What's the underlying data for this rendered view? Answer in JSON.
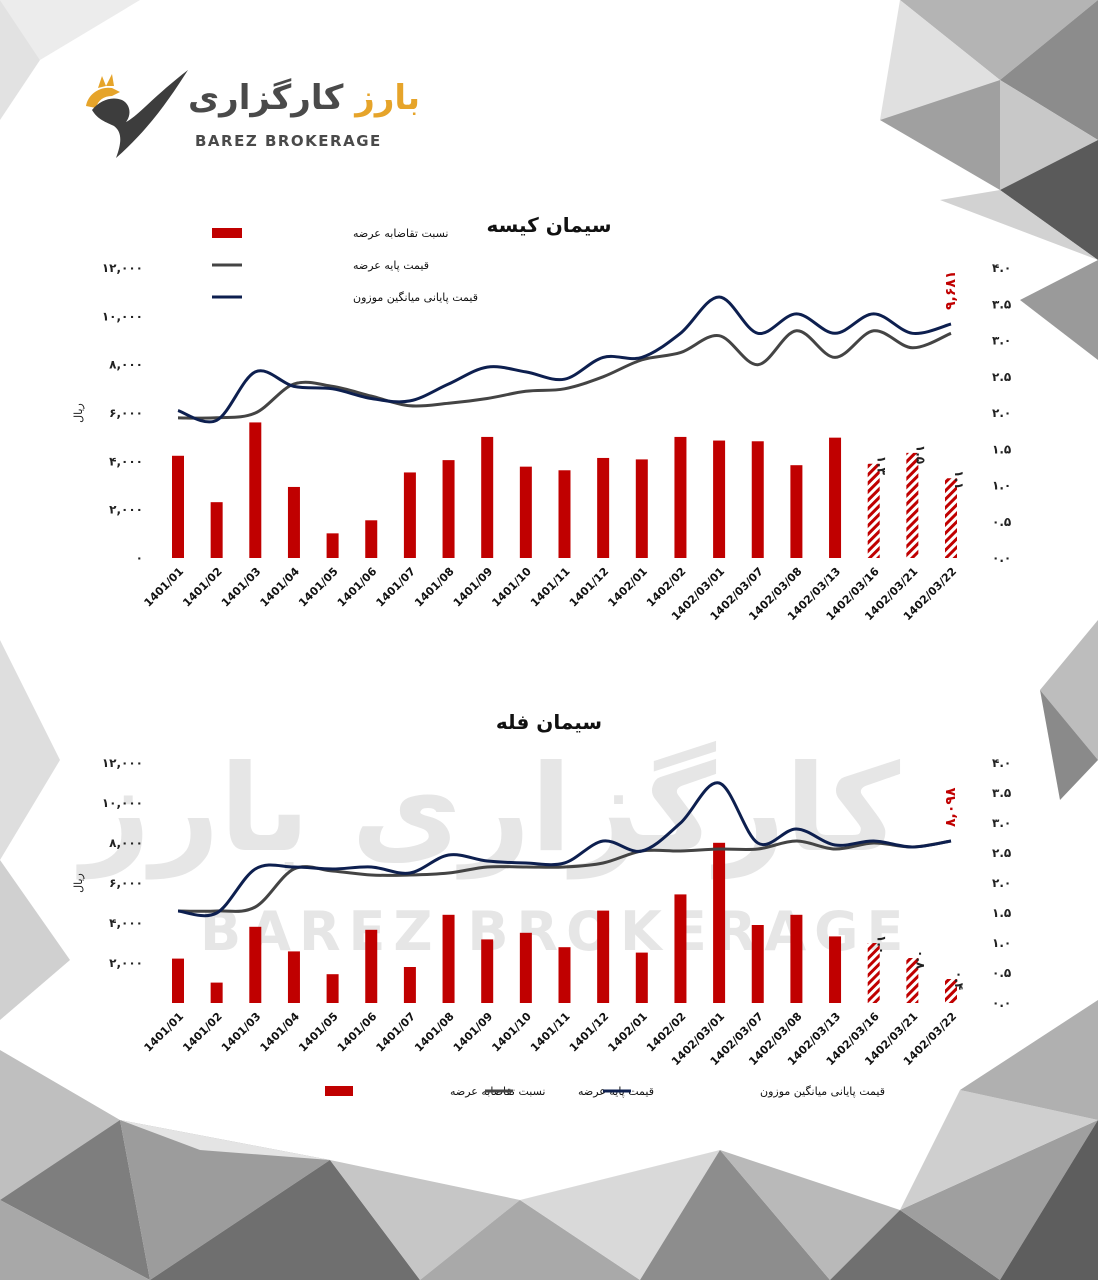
{
  "brand": {
    "name_fa_main": "کارگزاری",
    "name_fa_accent": "بارز",
    "name_en": "BAREZ BROKERAGE",
    "watermark_fa": "کارگزاری بارز",
    "watermark_en": "BAREZ BROKERAGE"
  },
  "colors": {
    "bar": "#c00000",
    "base_price_line": "#444444",
    "avg_price_line": "#0d1f4f",
    "annotation": "#c00000"
  },
  "left_axis_unit": "ریال",
  "chart_data": [
    {
      "type": "bar",
      "title": "سیمان کیسه",
      "categories": [
        "1401/01",
        "1401/02",
        "1401/03",
        "1401/04",
        "1401/05",
        "1401/06",
        "1401/07",
        "1401/08",
        "1401/09",
        "1401/10",
        "1401/11",
        "1401/12",
        "1402/01",
        "1402/02",
        "1402/03/01",
        "1402/03/07",
        "1402/03/08",
        "1402/03/13",
        "1402/03/16",
        "1402/03/21",
        "1402/03/22"
      ],
      "y_ticks": [
        "۱۲,۰۰۰",
        "۱۰,۰۰۰",
        "۸,۰۰۰",
        "۶,۰۰۰",
        "۴,۰۰۰",
        "۲,۰۰۰",
        "۰"
      ],
      "y2_ticks": [
        "۴.۰",
        "۳.۵",
        "۳.۰",
        "۲.۵",
        "۲.۰",
        "۱.۵",
        "۱.۰",
        "۰.۵",
        "۰.۰"
      ],
      "ylim": [
        0,
        12000
      ],
      "y2lim": [
        0,
        4.0
      ],
      "legend": [
        "نسبت تقاضابه عرضه",
        "قیمت پایه عرضه",
        "قیمت پایانی میانگین موزون"
      ],
      "legend_position": "top-left",
      "series": [
        {
          "name": "نسبت تقاضابه عرضه",
          "axis": "right",
          "type": "bar",
          "values": [
            1.41,
            0.77,
            1.87,
            0.98,
            0.34,
            0.52,
            1.18,
            1.35,
            1.67,
            1.26,
            1.21,
            1.38,
            1.36,
            1.67,
            1.62,
            1.61,
            1.28,
            1.66,
            1.3,
            1.45,
            1.1
          ]
        },
        {
          "name": "قیمت پایه عرضه",
          "axis": "left",
          "type": "line",
          "values": [
            5800,
            5800,
            6000,
            7200,
            7100,
            6700,
            6300,
            6400,
            6600,
            6900,
            7000,
            7500,
            8200,
            8500,
            9200,
            8000,
            9400,
            8300,
            9400,
            8700,
            9300
          ]
        },
        {
          "name": "قیمت پایانی میانگین موزون",
          "axis": "left",
          "type": "line",
          "values": [
            6100,
            5700,
            7700,
            7100,
            7000,
            6600,
            6500,
            7200,
            7900,
            7700,
            7400,
            8300,
            8300,
            9300,
            10800,
            9300,
            10100,
            9300,
            10100,
            9300,
            9681
          ]
        }
      ],
      "hatched_categories": [
        "1402/03/16",
        "1402/03/21",
        "1402/03/22"
      ],
      "annotations": [
        {
          "category": "1402/03/16",
          "text": "۱.۳"
        },
        {
          "category": "1402/03/21",
          "text": "۱.۵"
        },
        {
          "category": "1402/03/22",
          "text": "۱.۱"
        },
        {
          "category": "1402/03/22",
          "text": "۹,۶۸۱"
        }
      ]
    },
    {
      "type": "bar",
      "title": "سیمان فله",
      "categories": [
        "1401/01",
        "1401/02",
        "1401/03",
        "1401/04",
        "1401/05",
        "1401/06",
        "1401/07",
        "1401/08",
        "1401/09",
        "1401/10",
        "1401/11",
        "1401/12",
        "1402/01",
        "1402/02",
        "1402/03/01",
        "1402/03/07",
        "1402/03/08",
        "1402/03/13",
        "1402/03/16",
        "1402/03/21",
        "1402/03/22"
      ],
      "y_ticks": [
        "۱۲,۰۰۰",
        "۱۰,۰۰۰",
        "۸,۰۰۰",
        "۶,۰۰۰",
        "۴,۰۰۰",
        "۲,۰۰۰"
      ],
      "y2_ticks": [
        "۴.۰",
        "۳.۵",
        "۳.۰",
        "۲.۵",
        "۲.۰",
        "۱.۵",
        "۱.۰",
        "۰.۵",
        "۰.۰"
      ],
      "ylim": [
        0,
        12000
      ],
      "y2lim": [
        0,
        4.0
      ],
      "legend": [
        "نسبت تقاضابه عرضه",
        "قیمت پایه عرضه",
        "قیمت پایانی میانگین موزون"
      ],
      "legend_position": "bottom",
      "series": [
        {
          "name": "نسبت تقاضابه عرضه",
          "axis": "right",
          "type": "bar",
          "values": [
            0.74,
            0.34,
            1.27,
            0.86,
            0.48,
            1.22,
            0.6,
            1.47,
            1.06,
            1.17,
            0.93,
            1.54,
            0.84,
            1.81,
            2.67,
            1.3,
            1.47,
            1.11,
            1.0,
            0.75,
            0.4
          ]
        },
        {
          "name": "قیمت پایه عرضه",
          "axis": "left",
          "type": "line",
          "values": [
            4600,
            4600,
            4800,
            6700,
            6600,
            6400,
            6400,
            6500,
            6800,
            6800,
            6800,
            7000,
            7600,
            7600,
            7700,
            7700,
            8100,
            7700,
            8000,
            7800,
            8098
          ]
        },
        {
          "name": "قیمت پایانی میانگین موزون",
          "axis": "left",
          "type": "line",
          "values": [
            4600,
            4500,
            6700,
            6800,
            6700,
            6800,
            6500,
            7400,
            7100,
            7000,
            7000,
            8100,
            7600,
            9000,
            11000,
            8000,
            8700,
            7900,
            8100,
            7800,
            8098
          ]
        }
      ],
      "hatched_categories": [
        "1402/03/16",
        "1402/03/21",
        "1402/03/22"
      ],
      "annotations": [
        {
          "category": "1402/03/16",
          "text": "۱.۰"
        },
        {
          "category": "1402/03/21",
          "text": "۰.۸"
        },
        {
          "category": "1402/03/22",
          "text": "۰.۴"
        },
        {
          "category": "1402/03/22",
          "text": "۸,۰۹۸"
        }
      ]
    }
  ]
}
